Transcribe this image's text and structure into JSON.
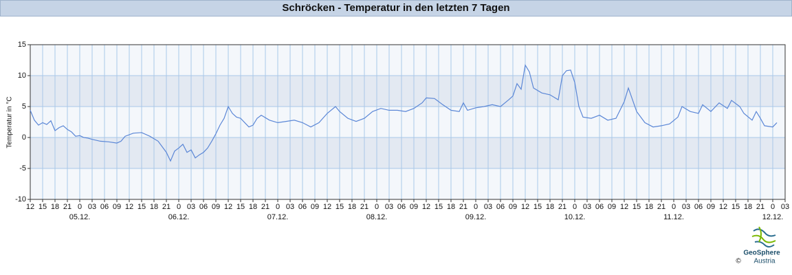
{
  "chart_data": {
    "type": "line",
    "title": "Schröcken - Temperatur in den letzten 7 Tagen",
    "ylabel": "Temperatur in °C",
    "ylim": [
      -10,
      15
    ],
    "yticks": [
      15,
      10,
      5,
      0,
      -5,
      -10
    ],
    "xlim": [
      0,
      183
    ],
    "xticks": [
      {
        "value": 0,
        "label": "12"
      },
      {
        "value": 3,
        "label": "15"
      },
      {
        "value": 6,
        "label": "18"
      },
      {
        "value": 9,
        "label": "21"
      },
      {
        "value": 12,
        "label": "0"
      },
      {
        "value": 15,
        "label": "03"
      },
      {
        "value": 18,
        "label": "06"
      },
      {
        "value": 21,
        "label": "09"
      },
      {
        "value": 24,
        "label": "12"
      },
      {
        "value": 27,
        "label": "15"
      },
      {
        "value": 30,
        "label": "18"
      },
      {
        "value": 33,
        "label": "21"
      },
      {
        "value": 36,
        "label": "0"
      },
      {
        "value": 39,
        "label": "03"
      },
      {
        "value": 42,
        "label": "06"
      },
      {
        "value": 45,
        "label": "09"
      },
      {
        "value": 48,
        "label": "12"
      },
      {
        "value": 51,
        "label": "15"
      },
      {
        "value": 54,
        "label": "18"
      },
      {
        "value": 57,
        "label": "21"
      },
      {
        "value": 60,
        "label": "0"
      },
      {
        "value": 63,
        "label": "03"
      },
      {
        "value": 66,
        "label": "06"
      },
      {
        "value": 69,
        "label": "09"
      },
      {
        "value": 72,
        "label": "12"
      },
      {
        "value": 75,
        "label": "15"
      },
      {
        "value": 78,
        "label": "18"
      },
      {
        "value": 81,
        "label": "21"
      },
      {
        "value": 84,
        "label": "0"
      },
      {
        "value": 87,
        "label": "03"
      },
      {
        "value": 90,
        "label": "06"
      },
      {
        "value": 93,
        "label": "09"
      },
      {
        "value": 96,
        "label": "12"
      },
      {
        "value": 99,
        "label": "15"
      },
      {
        "value": 102,
        "label": "18"
      },
      {
        "value": 105,
        "label": "21"
      },
      {
        "value": 108,
        "label": "0"
      },
      {
        "value": 111,
        "label": "03"
      },
      {
        "value": 114,
        "label": "06"
      },
      {
        "value": 117,
        "label": "09"
      },
      {
        "value": 120,
        "label": "12"
      },
      {
        "value": 123,
        "label": "15"
      },
      {
        "value": 126,
        "label": "18"
      },
      {
        "value": 129,
        "label": "21"
      },
      {
        "value": 132,
        "label": "0"
      },
      {
        "value": 135,
        "label": "03"
      },
      {
        "value": 138,
        "label": "06"
      },
      {
        "value": 141,
        "label": "09"
      },
      {
        "value": 144,
        "label": "12"
      },
      {
        "value": 147,
        "label": "15"
      },
      {
        "value": 150,
        "label": "18"
      },
      {
        "value": 153,
        "label": "21"
      },
      {
        "value": 156,
        "label": "0"
      },
      {
        "value": 159,
        "label": "03"
      },
      {
        "value": 162,
        "label": "06"
      },
      {
        "value": 165,
        "label": "09"
      },
      {
        "value": 168,
        "label": "12"
      },
      {
        "value": 171,
        "label": "15"
      },
      {
        "value": 174,
        "label": "18"
      },
      {
        "value": 177,
        "label": "21"
      },
      {
        "value": 180,
        "label": "0"
      },
      {
        "value": 183,
        "label": "03"
      }
    ],
    "date_labels": [
      {
        "value": 12,
        "label": "05.12."
      },
      {
        "value": 36,
        "label": "06.12."
      },
      {
        "value": 60,
        "label": "07.12."
      },
      {
        "value": 84,
        "label": "08.12."
      },
      {
        "value": 108,
        "label": "09.12."
      },
      {
        "value": 132,
        "label": "10.12."
      },
      {
        "value": 156,
        "label": "11.12."
      },
      {
        "value": 180,
        "label": "12.12."
      }
    ],
    "grid": true,
    "band_colors": [
      "#f4f7fb",
      "#e3e9f2"
    ],
    "grid_color": "#a9c8e8",
    "series": [
      {
        "color": "#5a86d6",
        "x": [
          0,
          1,
          2,
          3,
          4,
          5,
          6,
          7,
          8,
          9,
          10,
          11,
          12,
          13,
          14,
          15,
          17,
          19,
          21,
          22,
          23,
          25,
          27,
          29,
          31,
          33,
          34,
          35,
          36,
          37,
          38,
          39,
          40,
          41,
          42,
          43,
          44,
          45,
          46,
          47,
          48,
          49,
          50,
          51,
          52,
          53,
          54,
          55,
          56,
          58,
          60,
          62,
          64,
          66,
          68,
          70,
          72,
          74,
          75,
          77,
          79,
          81,
          83,
          85,
          87,
          89,
          91,
          93,
          95,
          96,
          98,
          100,
          102,
          104,
          105,
          106,
          108,
          110,
          112,
          114,
          116,
          117,
          118,
          119,
          120,
          121,
          122,
          124,
          126,
          128,
          129,
          130,
          131,
          132,
          133,
          134,
          136,
          138,
          140,
          142,
          144,
          145,
          146,
          147,
          149,
          151,
          153,
          155,
          157,
          158,
          160,
          162,
          163,
          165,
          167,
          169,
          170,
          172,
          173,
          175,
          176,
          177,
          178,
          180,
          181
        ],
        "values": [
          4.4,
          2.8,
          2.0,
          2.4,
          2.1,
          2.7,
          1.1,
          1.6,
          1.9,
          1.3,
          0.9,
          0.2,
          0.3,
          0,
          -0.1,
          -0.3,
          -0.6,
          -0.7,
          -0.9,
          -0.6,
          0.2,
          0.7,
          0.8,
          0.2,
          -0.6,
          -2.4,
          -3.8,
          -2.2,
          -1.7,
          -1.1,
          -2.4,
          -2.0,
          -3.3,
          -2.8,
          -2.4,
          -1.7,
          -0.6,
          0.6,
          2.0,
          3.1,
          5.0,
          3.9,
          3.3,
          3.1,
          2.4,
          1.7,
          2.0,
          3.1,
          3.6,
          2.8,
          2.4,
          2.6,
          2.8,
          2.4,
          1.7,
          2.4,
          3.9,
          5.0,
          4.2,
          3.1,
          2.6,
          3.1,
          4.2,
          4.7,
          4.4,
          4.4,
          4.2,
          4.7,
          5.6,
          6.4,
          6.3,
          5.3,
          4.4,
          4.2,
          5.6,
          4.4,
          4.8,
          5.0,
          5.3,
          5.0,
          6.1,
          6.7,
          8.7,
          7.8,
          11.7,
          10.6,
          8.0,
          7.2,
          6.9,
          6.1,
          10.0,
          10.8,
          10.9,
          8.9,
          5.0,
          3.3,
          3.1,
          3.6,
          2.8,
          3.1,
          5.8,
          8.0,
          6.1,
          4.2,
          2.4,
          1.7,
          1.9,
          2.2,
          3.3,
          5.0,
          4.2,
          3.9,
          5.3,
          4.2,
          5.6,
          4.7,
          6.0,
          5.0,
          3.9,
          2.8,
          4.2,
          3.1,
          1.9,
          1.7,
          2.4
        ]
      }
    ]
  },
  "logo": {
    "name": "GeoSphere",
    "sub": "Austria",
    "copyright": "©"
  }
}
